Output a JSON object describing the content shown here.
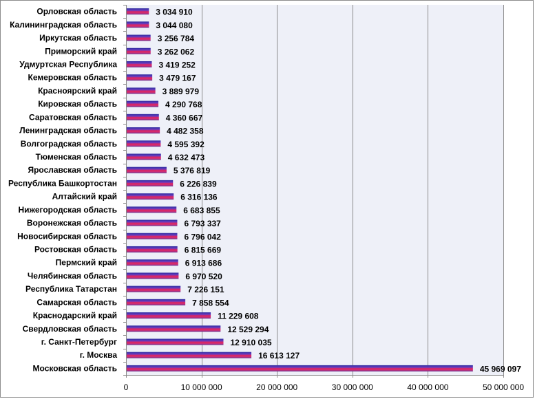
{
  "chart_data": {
    "type": "bar",
    "orientation": "horizontal",
    "title": "",
    "xlabel": "",
    "ylabel": "",
    "xlim": [
      0,
      50000000
    ],
    "grid": true,
    "legend": "none",
    "categories": [
      "Орловская область",
      "Калининградская область",
      "Иркутская область",
      "Приморский край",
      "Удмуртская Республика",
      "Кемеровская область",
      "Красноярский край",
      "Кировская область",
      "Саратовская область",
      "Ленинградская область",
      "Волгоградская область",
      "Тюменская область",
      "Ярославская область",
      "Республика Башкортостан",
      "Алтайский край",
      "Нижегородская область",
      "Воронежская область",
      "Новосибирская область",
      "Ростовская область",
      "Пермский край",
      "Челябинская область",
      "Республика Татарстан",
      "Самарская область",
      "Краснодарский край",
      "Свердловская область",
      "г. Санкт-Петербург",
      "г. Москва",
      "Московская область"
    ],
    "values": [
      3034910,
      3044080,
      3256784,
      3262062,
      3419252,
      3479167,
      3889979,
      4290768,
      4360667,
      4482358,
      4595392,
      4632473,
      5376819,
      6226839,
      6316136,
      6683855,
      6793337,
      6796042,
      6815669,
      6913686,
      6970520,
      7226151,
      7858554,
      11229608,
      12529294,
      12910035,
      16613127,
      45969097
    ],
    "value_labels": [
      "3 034 910",
      "3 044 080",
      "3 256 784",
      "3 262 062",
      "3 419 252",
      "3 479 167",
      "3 889 979",
      "4 290 768",
      "4 360 667",
      "4 482 358",
      "4 595 392",
      "4 632 473",
      "5 376 819",
      "6 226 839",
      "6 316 136",
      "6 683 855",
      "6 793 337",
      "6 796 042",
      "6 815 669",
      "6 913 686",
      "6 970 520",
      "7 226 151",
      "7 858 554",
      "11 229 608",
      "12 529 294",
      "12 910 035",
      "16 613 127",
      "45 969 097"
    ],
    "ticks": [
      0,
      10000000,
      20000000,
      30000000,
      40000000,
      50000000
    ],
    "tick_labels": [
      "0",
      "10 000 000",
      "20 000 000",
      "30 000 000",
      "40 000 000",
      "50 000 000"
    ],
    "colors": {
      "plot_background": "#eef0f8",
      "gridline": "#8a8a8a",
      "bar_top": "#2e2ea0",
      "bar_mid": "#e0245e",
      "bar_bottom": "#5a2a8c"
    }
  }
}
